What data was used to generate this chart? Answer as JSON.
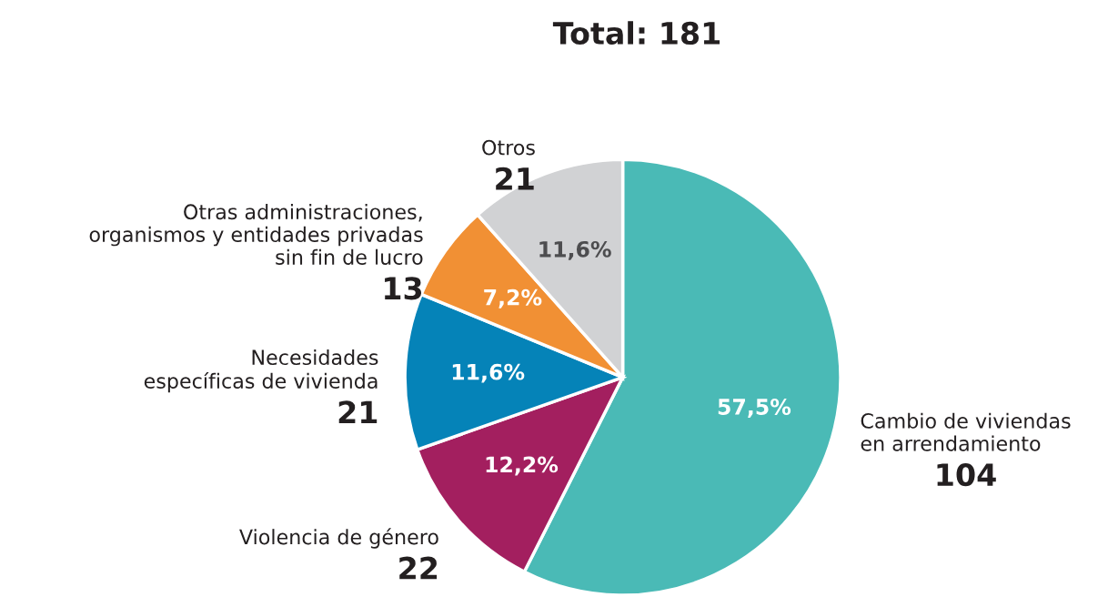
{
  "chart_data": {
    "type": "pie",
    "title": "Total: 181",
    "categories": [
      "Cambio de viviendas\nen arrendamiento",
      "Violencia de género",
      "Necesidades\nespecíficas de vivienda",
      "Otras administraciones,\norganismos y entidades privadas\nsin fin de lucro",
      "Otros"
    ],
    "values": [
      104,
      22,
      21,
      13,
      21
    ],
    "colors": [
      "#4abab6",
      "#a31f5f",
      "#0583b8",
      "#f19034",
      "#d1d2d4"
    ],
    "value_labels": [
      "104",
      "22",
      "21",
      "13",
      "21"
    ],
    "annotations": [
      "57,5%",
      "12,2%",
      "11,6%",
      "7,2%",
      "11,6%"
    ]
  }
}
